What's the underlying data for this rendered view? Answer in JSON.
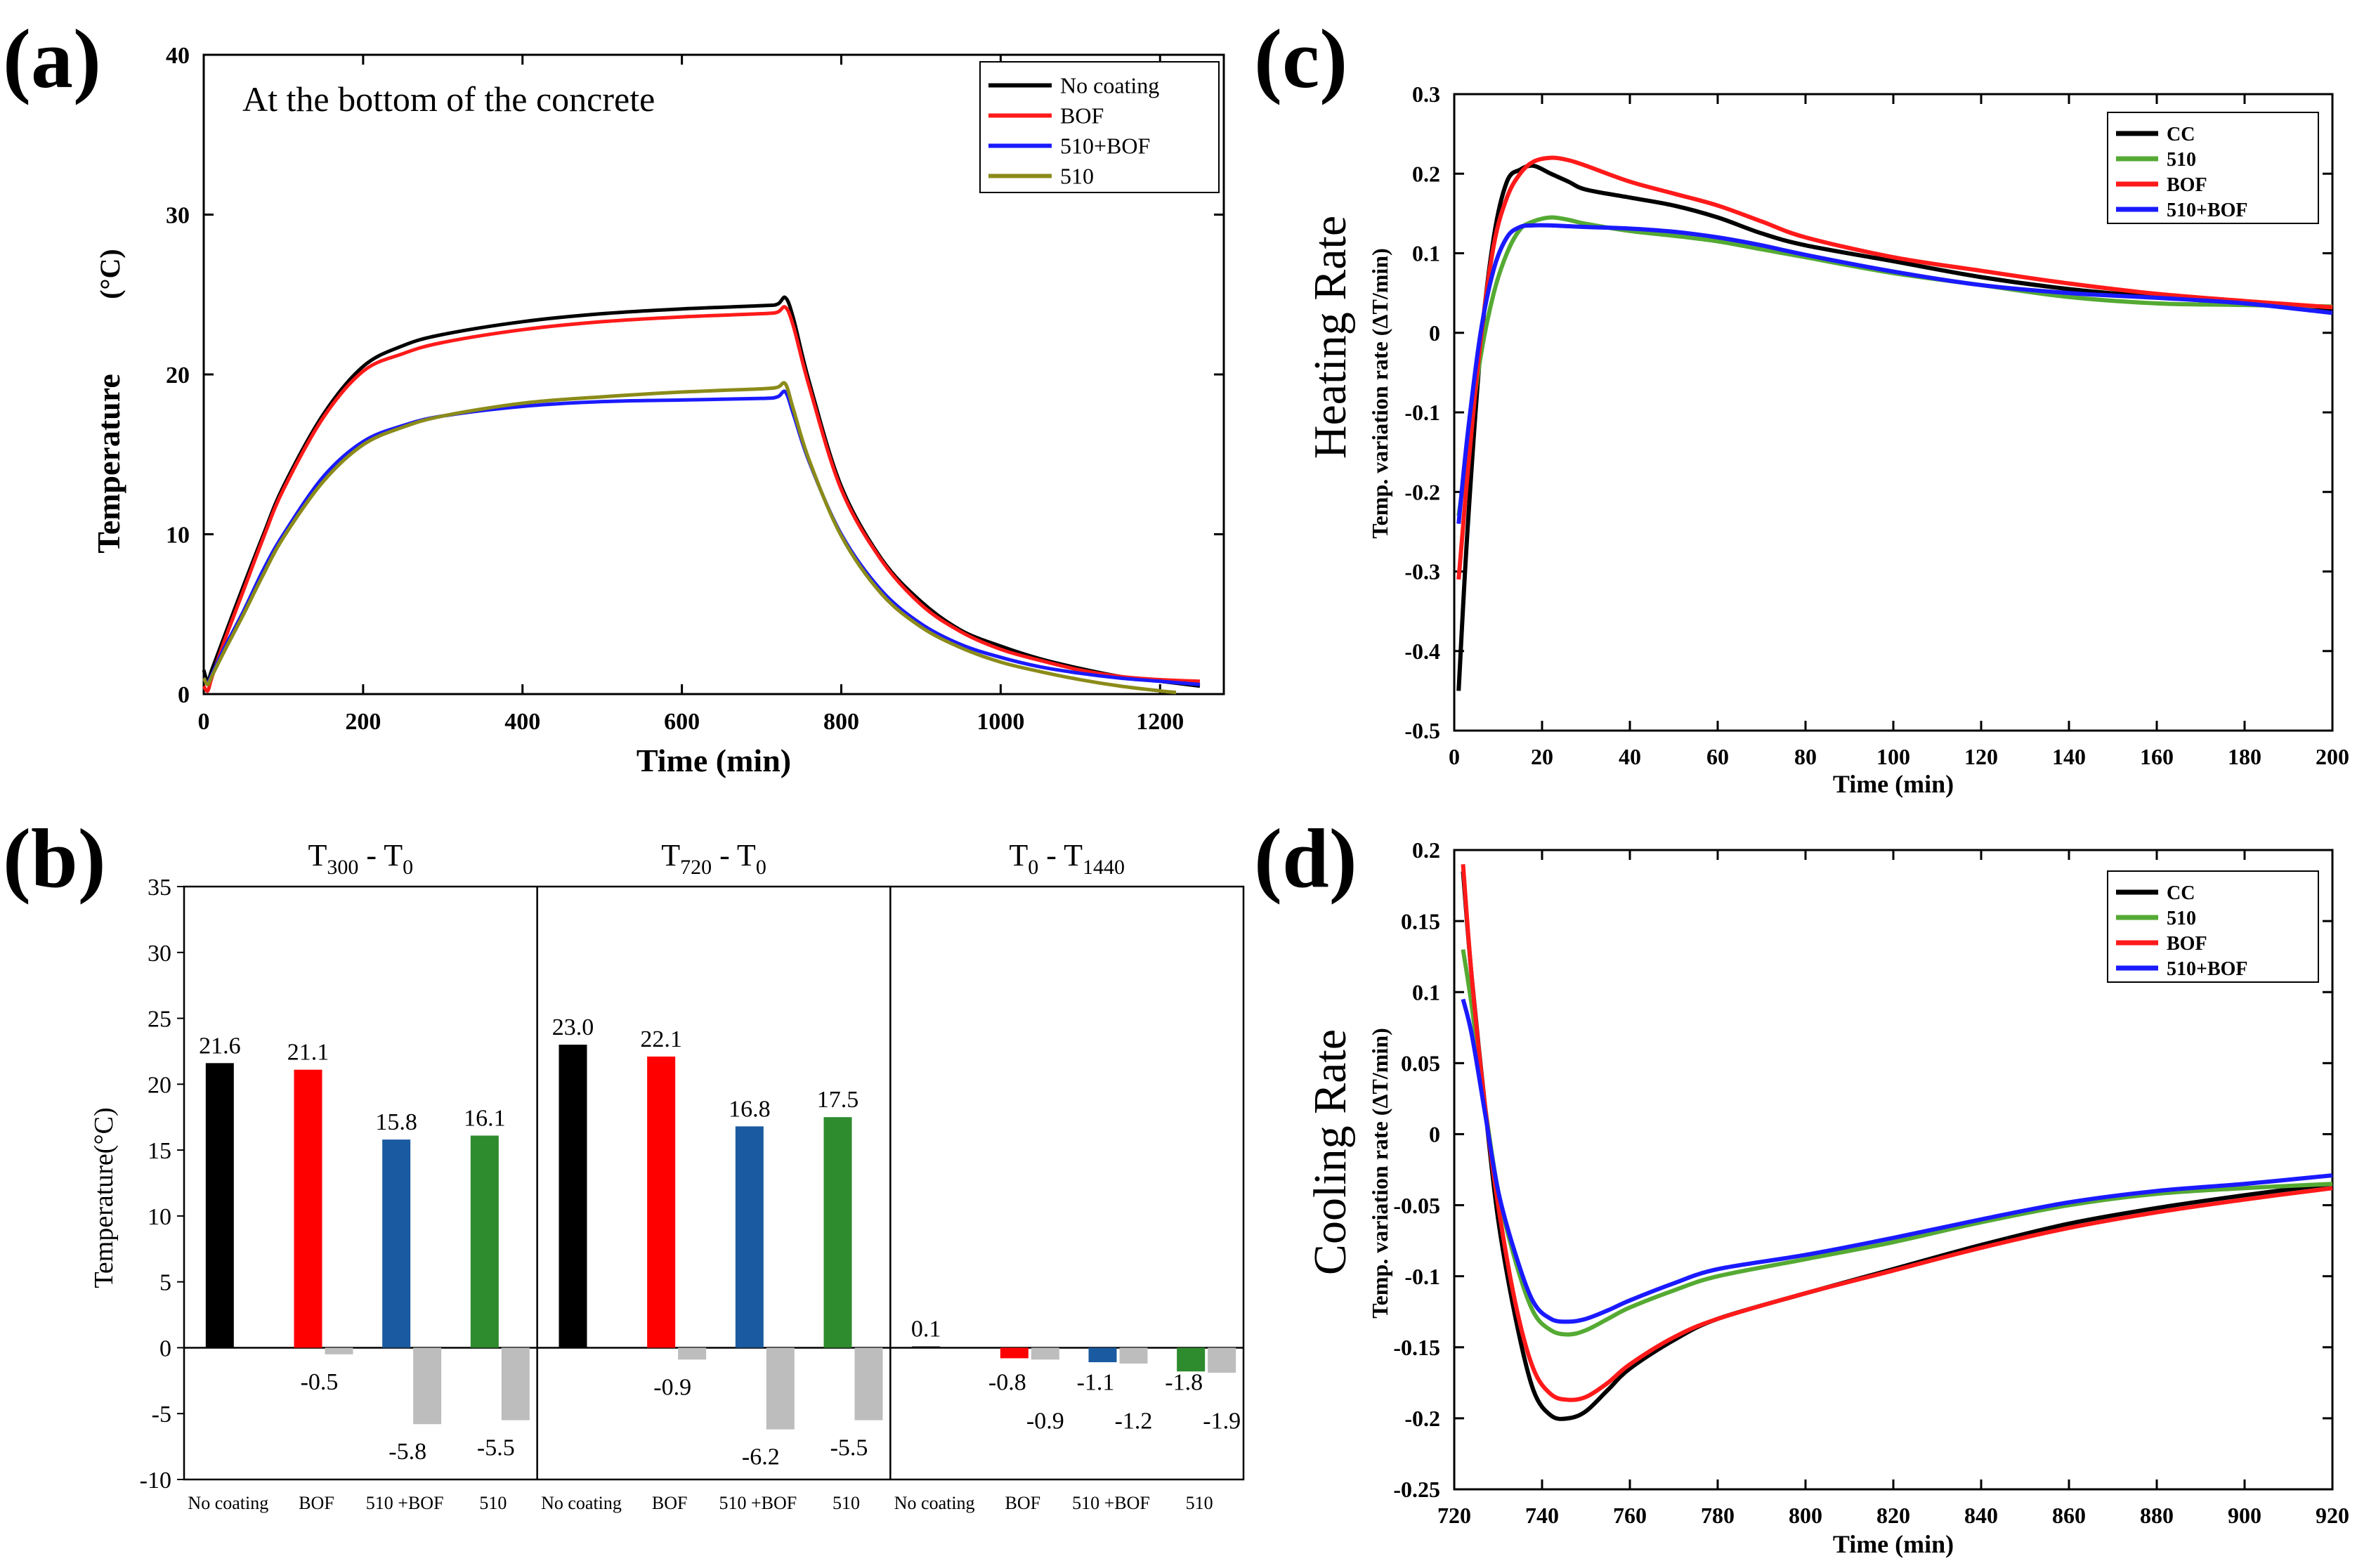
{
  "figure": {
    "panel_a_label": "(a)",
    "panel_b_label": "(b)",
    "panel_c_label": "(c)",
    "panel_d_label": "(d)"
  },
  "colors": {
    "no_coating": "#000000",
    "bof": "#ff1a1a",
    "c510bof": "#1a1aff",
    "c510_a": "#8b8b1a",
    "c510_green": "#55aa33",
    "bar_black": "#000000",
    "bar_red": "#ff0000",
    "bar_blue": "#1a5aa0",
    "bar_green": "#2e8b2e",
    "bar_gray": "#bdbdbd"
  },
  "chart_data": [
    {
      "id": "a",
      "type": "line",
      "title": "At the bottom of the concrete",
      "xlabel": "Time (min)",
      "ylabel": "Temperature",
      "ylabel_unit": "(°C)",
      "xlim": [
        0,
        1280
      ],
      "ylim": [
        0,
        40
      ],
      "xticks": [
        0,
        200,
        400,
        600,
        800,
        1000,
        1200
      ],
      "yticks": [
        0,
        10,
        20,
        30,
        40
      ],
      "legend": [
        "No coating",
        "BOF",
        "510+BOF",
        "510"
      ],
      "legend_position": "top-right",
      "series": [
        {
          "name": "No coating",
          "color_key": "no_coating",
          "x": [
            0,
            5,
            10,
            25,
            50,
            75,
            100,
            150,
            200,
            250,
            300,
            400,
            500,
            600,
            700,
            720,
            730,
            740,
            760,
            800,
            850,
            900,
            950,
            1000,
            1050,
            1100,
            1150,
            1200,
            1250
          ],
          "y": [
            1.5,
            0.8,
            1.5,
            3.5,
            6.8,
            10,
            13,
            17.5,
            20.5,
            21.8,
            22.5,
            23.3,
            23.8,
            24.1,
            24.3,
            24.4,
            24.8,
            23.5,
            19.5,
            13,
            8.5,
            5.8,
            4,
            3,
            2.2,
            1.6,
            1.1,
            0.8,
            0.5
          ]
        },
        {
          "name": "BOF",
          "color_key": "bof",
          "x": [
            0,
            5,
            10,
            25,
            50,
            75,
            100,
            150,
            200,
            250,
            300,
            400,
            500,
            600,
            700,
            720,
            730,
            740,
            760,
            800,
            850,
            900,
            950,
            1000,
            1050,
            1100,
            1150,
            1200,
            1250
          ],
          "y": [
            0.5,
            0.2,
            1,
            3.2,
            6.5,
            9.8,
            12.8,
            17.3,
            20.2,
            21.3,
            22,
            22.8,
            23.3,
            23.6,
            23.8,
            23.9,
            24.2,
            23,
            19.2,
            12.8,
            8.4,
            5.6,
            3.9,
            2.8,
            2.1,
            1.5,
            1.1,
            0.9,
            0.8
          ]
        },
        {
          "name": "510+BOF",
          "color_key": "c510bof",
          "x": [
            0,
            5,
            10,
            25,
            50,
            75,
            100,
            150,
            200,
            250,
            300,
            400,
            500,
            600,
            700,
            720,
            730,
            740,
            760,
            800,
            850,
            900,
            950,
            1000,
            1050,
            1100,
            1150,
            1200,
            1250
          ],
          "y": [
            1,
            0.7,
            1.2,
            2.8,
            5.2,
            7.8,
            10,
            13.6,
            15.8,
            16.8,
            17.4,
            18,
            18.3,
            18.4,
            18.5,
            18.6,
            18.9,
            17.5,
            14.5,
            10,
            6.5,
            4.4,
            3.1,
            2.3,
            1.7,
            1.3,
            1,
            0.8,
            0.6
          ]
        },
        {
          "name": "510",
          "color_key": "c510_a",
          "x": [
            0,
            5,
            10,
            25,
            50,
            75,
            100,
            150,
            200,
            250,
            300,
            400,
            500,
            600,
            700,
            720,
            730,
            740,
            760,
            800,
            850,
            900,
            950,
            1000,
            1050,
            1100,
            1150,
            1200,
            1220
          ],
          "y": [
            1,
            0.6,
            1.1,
            2.6,
            5,
            7.5,
            9.8,
            13.3,
            15.6,
            16.7,
            17.4,
            18.2,
            18.6,
            18.9,
            19.1,
            19.2,
            19.4,
            17.8,
            14.6,
            9.9,
            6.3,
            4.2,
            2.9,
            2,
            1.4,
            0.9,
            0.5,
            0.2,
            0.1
          ]
        }
      ]
    },
    {
      "id": "b",
      "type": "bar",
      "ylabel": "Temperature(°C)",
      "ylim": [
        -10,
        35
      ],
      "yticks": [
        -10,
        -5,
        0,
        5,
        10,
        15,
        20,
        25,
        30,
        35
      ],
      "groups": [
        {
          "title_main": "T",
          "title_sub1": "300",
          "title_mid": " - T",
          "title_sub2": "0",
          "categories": [
            "No coating",
            "BOF",
            "510 +BOF",
            "510"
          ],
          "colored_values": [
            21.6,
            21.1,
            15.8,
            16.1
          ],
          "colored_labels": [
            "21.6",
            "21.1",
            "15.8",
            "16.1"
          ],
          "gray_values": [
            null,
            -0.5,
            -5.8,
            -5.5
          ],
          "gray_labels": [
            "",
            "-0.5",
            "-5.8",
            "-5.5"
          ]
        },
        {
          "title_main": "T",
          "title_sub1": "720",
          "title_mid": " - T",
          "title_sub2": "0",
          "categories": [
            "No coating",
            "BOF",
            "510 +BOF",
            "510"
          ],
          "colored_values": [
            23.0,
            22.1,
            16.8,
            17.5
          ],
          "colored_labels": [
            "23.0",
            "22.1",
            "16.8",
            "17.5"
          ],
          "gray_values": [
            null,
            -0.9,
            -6.2,
            -5.5
          ],
          "gray_labels": [
            "",
            "-0.9",
            "-6.2",
            "-5.5"
          ]
        },
        {
          "title_main": "T",
          "title_sub1": "0",
          "title_mid": " - T",
          "title_sub2": "1440",
          "categories": [
            "No coating",
            "BOF",
            "510 +BOF",
            "510"
          ],
          "colored_values": [
            0.1,
            -0.8,
            -1.1,
            -1.8
          ],
          "colored_labels": [
            "0.1",
            "-0.8",
            "-1.1",
            "-1.8"
          ],
          "gray_values": [
            null,
            -0.9,
            -1.2,
            -1.9
          ],
          "gray_labels": [
            "",
            "-0.9",
            "-1.2",
            "-1.9"
          ]
        }
      ]
    },
    {
      "id": "c",
      "type": "line",
      "ylabel_main": "Heating Rate",
      "ylabel_sub": "Temp. variation rate (ΔT/min)",
      "xlabel": "Time (min)",
      "xlim": [
        0,
        200
      ],
      "ylim": [
        -0.5,
        0.3
      ],
      "xticks": [
        0,
        20,
        40,
        60,
        80,
        100,
        120,
        140,
        160,
        180,
        200
      ],
      "yticks": [
        -0.5,
        -0.4,
        -0.3,
        -0.2,
        -0.1,
        0,
        0.1,
        0.2,
        0.3
      ],
      "legend": [
        "CC",
        "510",
        "BOF",
        "510+BOF"
      ],
      "legend_position": "top-right",
      "series": [
        {
          "name": "CC",
          "color_key": "no_coating",
          "x": [
            1,
            3,
            6,
            9,
            12,
            15,
            18,
            22,
            26,
            30,
            40,
            50,
            60,
            70,
            80,
            100,
            120,
            140,
            160,
            180,
            200
          ],
          "y": [
            -0.45,
            -0.25,
            -0.02,
            0.12,
            0.19,
            0.205,
            0.21,
            0.2,
            0.19,
            0.18,
            0.17,
            0.16,
            0.145,
            0.125,
            0.11,
            0.09,
            0.07,
            0.055,
            0.045,
            0.037,
            0.03
          ]
        },
        {
          "name": "510",
          "color_key": "c510_green",
          "x": [
            1,
            3,
            6,
            9,
            12,
            15,
            18,
            22,
            26,
            30,
            40,
            50,
            60,
            70,
            80,
            100,
            120,
            140,
            160,
            180,
            200
          ],
          "y": [
            -0.23,
            -0.15,
            -0.03,
            0.05,
            0.1,
            0.13,
            0.14,
            0.145,
            0.142,
            0.137,
            0.128,
            0.122,
            0.115,
            0.105,
            0.095,
            0.075,
            0.06,
            0.045,
            0.037,
            0.035,
            0.033
          ]
        },
        {
          "name": "BOF",
          "color_key": "bof",
          "x": [
            1,
            3,
            6,
            9,
            12,
            15,
            18,
            22,
            26,
            30,
            40,
            50,
            60,
            70,
            80,
            100,
            120,
            140,
            160,
            180,
            200
          ],
          "y": [
            -0.31,
            -0.18,
            -0.01,
            0.11,
            0.17,
            0.2,
            0.215,
            0.22,
            0.217,
            0.21,
            0.19,
            0.175,
            0.16,
            0.14,
            0.12,
            0.095,
            0.078,
            0.062,
            0.049,
            0.04,
            0.032
          ]
        },
        {
          "name": "510+BOF",
          "color_key": "c510bof",
          "x": [
            1,
            3,
            6,
            9,
            12,
            15,
            18,
            22,
            26,
            30,
            40,
            50,
            60,
            70,
            80,
            100,
            120,
            140,
            160,
            180,
            200
          ],
          "y": [
            -0.24,
            -0.13,
            0.0,
            0.08,
            0.12,
            0.133,
            0.135,
            0.135,
            0.134,
            0.133,
            0.131,
            0.127,
            0.12,
            0.11,
            0.098,
            0.077,
            0.06,
            0.05,
            0.044,
            0.037,
            0.025
          ]
        }
      ]
    },
    {
      "id": "d",
      "type": "line",
      "ylabel_main": "Cooling Rate",
      "ylabel_sub": "Temp. variation rate (ΔT/min)",
      "xlabel": "Time (min)",
      "xlim": [
        720,
        920
      ],
      "ylim": [
        -0.25,
        0.2
      ],
      "xticks": [
        720,
        740,
        760,
        780,
        800,
        820,
        840,
        860,
        880,
        900,
        920
      ],
      "yticks": [
        -0.25,
        -0.2,
        -0.15,
        -0.1,
        -0.05,
        0,
        0.05,
        0.1,
        0.15,
        0.2
      ],
      "legend": [
        "CC",
        "510",
        "BOF",
        "510+BOF"
      ],
      "legend_position": "top-right",
      "series": [
        {
          "name": "CC",
          "color_key": "no_coating",
          "x": [
            722,
            724,
            727,
            730,
            734,
            738,
            742,
            746,
            750,
            755,
            760,
            770,
            780,
            800,
            820,
            840,
            860,
            880,
            900,
            920
          ],
          "y": [
            0.185,
            0.11,
            0.02,
            -0.06,
            -0.13,
            -0.18,
            -0.198,
            -0.2,
            -0.195,
            -0.18,
            -0.165,
            -0.145,
            -0.13,
            -0.112,
            -0.095,
            -0.078,
            -0.063,
            -0.052,
            -0.043,
            -0.035
          ]
        },
        {
          "name": "510",
          "color_key": "c510_green",
          "x": [
            722,
            724,
            727,
            730,
            734,
            738,
            742,
            746,
            750,
            755,
            760,
            770,
            780,
            800,
            820,
            840,
            860,
            880,
            900,
            920
          ],
          "y": [
            0.13,
            0.09,
            0.02,
            -0.04,
            -0.09,
            -0.125,
            -0.138,
            -0.141,
            -0.138,
            -0.13,
            -0.122,
            -0.11,
            -0.1,
            -0.088,
            -0.076,
            -0.062,
            -0.05,
            -0.042,
            -0.038,
            -0.035
          ]
        },
        {
          "name": "BOF",
          "color_key": "bof",
          "x": [
            722,
            724,
            727,
            730,
            734,
            738,
            742,
            746,
            750,
            755,
            760,
            770,
            780,
            800,
            820,
            840,
            860,
            880,
            900,
            920
          ],
          "y": [
            0.19,
            0.11,
            0.02,
            -0.05,
            -0.12,
            -0.165,
            -0.183,
            -0.187,
            -0.185,
            -0.175,
            -0.162,
            -0.143,
            -0.13,
            -0.112,
            -0.096,
            -0.08,
            -0.066,
            -0.055,
            -0.046,
            -0.038
          ]
        },
        {
          "name": "510+BOF",
          "color_key": "c510bof",
          "x": [
            722,
            724,
            727,
            730,
            734,
            738,
            742,
            746,
            750,
            755,
            760,
            770,
            780,
            800,
            820,
            840,
            860,
            880,
            900,
            920
          ],
          "y": [
            0.095,
            0.07,
            0.015,
            -0.04,
            -0.085,
            -0.118,
            -0.13,
            -0.132,
            -0.13,
            -0.124,
            -0.117,
            -0.105,
            -0.095,
            -0.085,
            -0.073,
            -0.06,
            -0.048,
            -0.04,
            -0.035,
            -0.029
          ]
        }
      ]
    }
  ]
}
